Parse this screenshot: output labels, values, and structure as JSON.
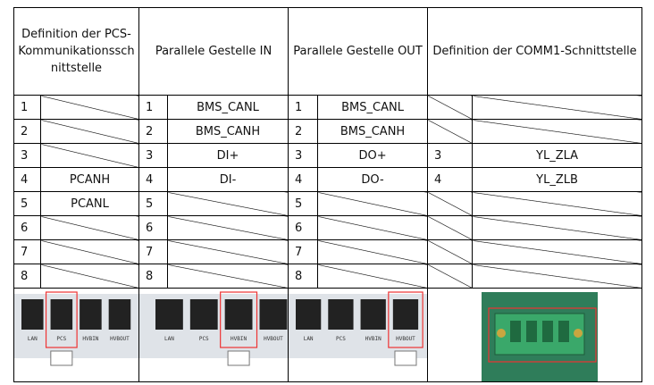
{
  "table": {
    "header": [
      "Definition der PCS-Kommunikationsschnittstelle",
      "Parallele Gestelle IN",
      "Parallele Gestelle OUT",
      "Definition der COMM1-Schnittstelle"
    ],
    "rows": [
      [
        "1",
        null,
        "1",
        "BMS_CANL",
        "1",
        "BMS_CANL",
        null,
        null
      ],
      [
        "2",
        null,
        "2",
        "BMS_CANH",
        "2",
        "BMS_CANH",
        null,
        null
      ],
      [
        "3",
        null,
        "3",
        "DI+",
        "3",
        "DO+",
        "3",
        "YL_ZLA"
      ],
      [
        "4",
        "PCANH",
        "4",
        "DI-",
        "4",
        "DO-",
        "4",
        "YL_ZLB"
      ],
      [
        "5",
        "PCANL",
        "5",
        null,
        "5",
        null,
        null,
        null
      ],
      [
        "6",
        null,
        "6",
        null,
        "6",
        null,
        null,
        null
      ],
      [
        "7",
        null,
        "7",
        null,
        "7",
        null,
        null,
        null
      ],
      [
        "8",
        null,
        "8",
        null,
        "8",
        null,
        null,
        null
      ]
    ],
    "images": [
      {
        "labels": [
          "LAN",
          "PCS",
          "HVBIN",
          "HVBOUT"
        ],
        "highlight": 1
      },
      {
        "labels": [
          "LAN",
          "PCS",
          "HVBIN",
          "HVBOUT"
        ],
        "highlight": 2
      },
      {
        "labels": [
          "LAN",
          "PCS",
          "HVBIN",
          "HVBOUT"
        ],
        "highlight": 3
      }
    ]
  }
}
